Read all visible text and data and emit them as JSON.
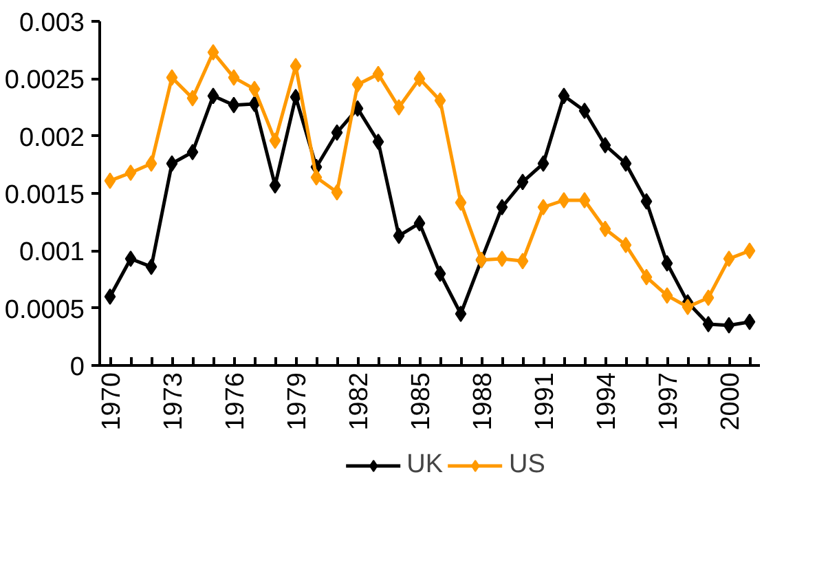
{
  "chart_data": {
    "type": "line",
    "x": [
      1970,
      1971,
      1972,
      1973,
      1974,
      1975,
      1976,
      1977,
      1978,
      1979,
      1980,
      1981,
      1982,
      1983,
      1984,
      1985,
      1986,
      1987,
      1988,
      1989,
      1990,
      1991,
      1992,
      1993,
      1994,
      1995,
      1996,
      1997,
      1998,
      1999,
      2000,
      2001
    ],
    "series": [
      {
        "name": "UK",
        "color": "#000000",
        "values": [
          0.0006,
          0.00093,
          0.00086,
          0.00176,
          0.00186,
          0.00235,
          0.00227,
          0.00228,
          0.00157,
          0.00234,
          0.00173,
          0.00203,
          0.00224,
          0.00195,
          0.00113,
          0.00124,
          0.0008,
          0.00045,
          0.00092,
          0.00138,
          0.0016,
          0.00176,
          0.00235,
          0.00222,
          0.00192,
          0.00176,
          0.00143,
          0.00089,
          0.00055,
          0.00036,
          0.00035,
          0.00038
        ]
      },
      {
        "name": "US",
        "color": "#ff9900",
        "values": [
          0.00161,
          0.00168,
          0.00176,
          0.00251,
          0.00233,
          0.00273,
          0.00251,
          0.00241,
          0.00196,
          0.00261,
          0.00164,
          0.00151,
          0.00245,
          0.00254,
          0.00225,
          0.0025,
          0.00231,
          0.00142,
          0.00092,
          0.00093,
          0.00091,
          0.00138,
          0.00144,
          0.00144,
          0.00119,
          0.00105,
          0.00077,
          0.00061,
          0.00051,
          0.00059,
          0.00093,
          0.001
        ]
      }
    ],
    "xlim": [
      1969.5,
      2001.5
    ],
    "xticks": [
      1970,
      {
        "value": 1971,
        "label": null
      },
      {
        "value": 1972,
        "label": null
      },
      1973,
      {
        "value": 1974,
        "label": null
      },
      {
        "value": 1975,
        "label": null
      },
      1976,
      {
        "value": 1977,
        "label": null
      },
      {
        "value": 1978,
        "label": null
      },
      1979,
      {
        "value": 1980,
        "label": null
      },
      {
        "value": 1981,
        "label": null
      },
      1982,
      {
        "value": 1983,
        "label": null
      },
      {
        "value": 1984,
        "label": null
      },
      1985,
      {
        "value": 1986,
        "label": null
      },
      {
        "value": 1987,
        "label": null
      },
      1988,
      {
        "value": 1989,
        "label": null
      },
      {
        "value": 1990,
        "label": null
      },
      1991,
      {
        "value": 1992,
        "label": null
      },
      {
        "value": 1993,
        "label": null
      },
      1994,
      {
        "value": 1995,
        "label": null
      },
      {
        "value": 1996,
        "label": null
      },
      1997,
      {
        "value": 1998,
        "label": null
      },
      {
        "value": 1999,
        "label": null
      },
      2000,
      {
        "value": 2001,
        "label": null
      }
    ],
    "ylim": [
      0,
      0.003
    ],
    "yticks": [
      0,
      0.0005,
      0.001,
      0.0015,
      0.002,
      0.0025,
      0.003
    ],
    "grid": false,
    "legend": "bottom",
    "marker": "diamond",
    "line_style": "solid"
  }
}
